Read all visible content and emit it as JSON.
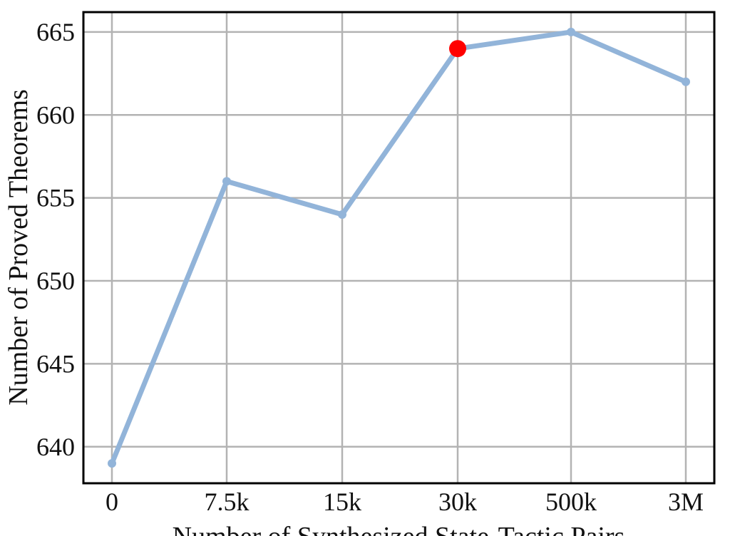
{
  "chart_data": {
    "type": "line",
    "title": "",
    "xlabel": "Number of Synthesized State-Tactic Pairs",
    "ylabel": "Number of Proved Theorems",
    "categories": [
      "0",
      "7.5k",
      "15k",
      "30k",
      "500k",
      "3M"
    ],
    "series": [
      {
        "values": [
          639,
          656,
          654,
          664,
          665,
          662
        ],
        "color": "#92b4d9"
      }
    ],
    "highlight": {
      "category": "30k",
      "value": 664,
      "color": "#ff0000"
    },
    "yticks": [
      640,
      645,
      650,
      655,
      660,
      665
    ],
    "ylim": [
      637.8,
      666.2
    ],
    "grid": true,
    "legend": "none"
  }
}
